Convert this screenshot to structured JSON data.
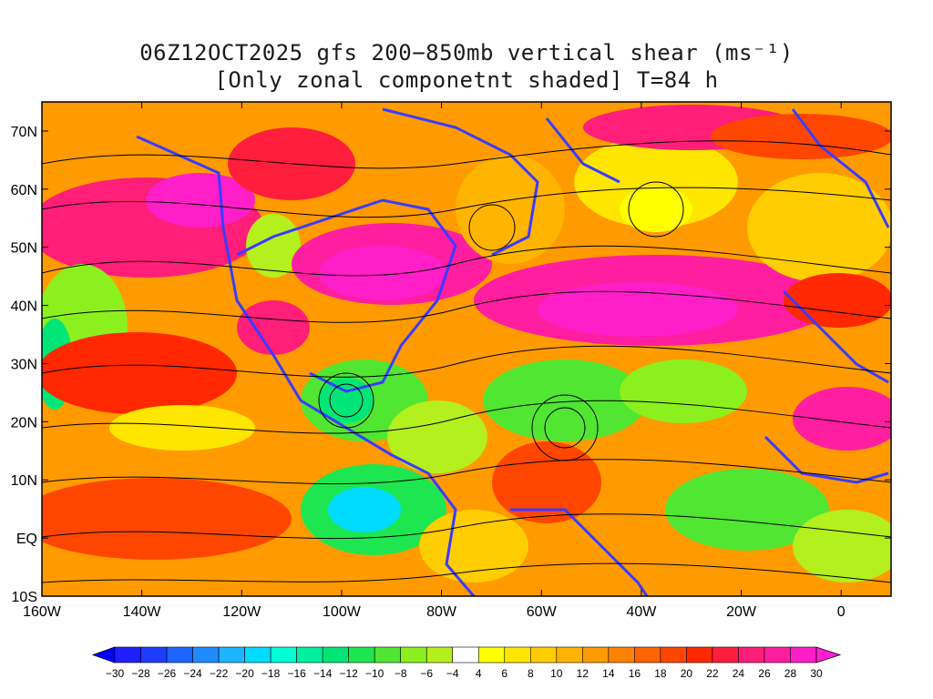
{
  "title": {
    "line1": "06Z12OCT2025 gfs 200−850mb vertical shear (ms⁻¹)",
    "line2": "[Only zonal componetnt shaded] T=84 h"
  },
  "map": {
    "lon_range": [
      -160,
      10
    ],
    "lat_range": [
      -10,
      75
    ],
    "lat_ticks": [
      "70N",
      "60N",
      "50N",
      "40N",
      "30N",
      "20N",
      "10N",
      "EQ",
      "10S"
    ],
    "lat_values": [
      70,
      60,
      50,
      40,
      30,
      20,
      10,
      0,
      -10
    ],
    "lon_ticks": [
      "160W",
      "140W",
      "120W",
      "100W",
      "80W",
      "60W",
      "40W",
      "20W",
      "0"
    ],
    "lon_values": [
      -160,
      -140,
      -120,
      -100,
      -80,
      -60,
      -40,
      -20,
      0
    ],
    "coastline_color": "#3b3bff",
    "streamline_color": "#000000",
    "contour_color": "#8a2be2"
  },
  "colorbar": {
    "labels": [
      "−30",
      "−28",
      "−26",
      "−24",
      "−22",
      "−20",
      "−18",
      "−16",
      "−14",
      "−12",
      "−10",
      "−8",
      "−6",
      "−4",
      "4",
      "6",
      "8",
      "10",
      "12",
      "14",
      "16",
      "18",
      "20",
      "22",
      "24",
      "26",
      "28",
      "30"
    ],
    "colors": [
      "#1e1eff",
      "#1e3cff",
      "#1e64ff",
      "#1e8cff",
      "#1eb4ff",
      "#00dcff",
      "#00ffd2",
      "#00f0a0",
      "#00e676",
      "#1ee650",
      "#50e632",
      "#8cf01e",
      "#b4f01e",
      "#ffffff",
      "#ffff00",
      "#ffe600",
      "#ffcd00",
      "#ffb400",
      "#ff9b00",
      "#ff8200",
      "#ff6400",
      "#ff4600",
      "#ff2800",
      "#ff1e3c",
      "#ff1e78",
      "#ff1ea0",
      "#ff1ec8"
    ],
    "left_arrow_color": "#0000ff",
    "right_arrow_color": "#ff1ed2"
  }
}
